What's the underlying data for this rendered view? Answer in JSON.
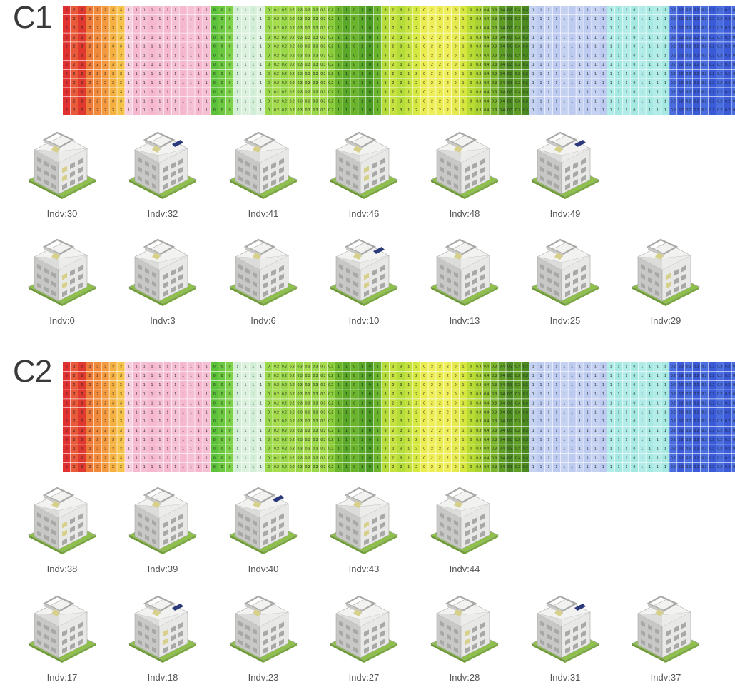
{
  "sections": [
    {
      "label": "C1",
      "rows": [
        {
          "items": [
            "Indv:30",
            "Indv:32",
            "Indv:41",
            "Indv:46",
            "Indv:48",
            "Indv:49"
          ]
        },
        {
          "items": [
            "Indv:0",
            "Indv:3",
            "Indv:6",
            "Indv:10",
            "Indv:13",
            "Indv:25",
            "Indv:29"
          ]
        }
      ]
    },
    {
      "label": "C2",
      "rows": [
        {
          "items": [
            "Indv:38",
            "Indv:39",
            "Indv:40",
            "Indv:43",
            "Indv:44"
          ]
        },
        {
          "items": [
            "Indv:17",
            "Indv:18",
            "Indv:23",
            "Indv:27",
            "Indv:28",
            "Indv:31",
            "Indv:37"
          ]
        }
      ]
    }
  ],
  "heatmap_columns": [
    {
      "color": "#e03030",
      "value": "0"
    },
    {
      "color": "#e85a3a",
      "value": "2"
    },
    {
      "color": "#e03a30",
      "value": "0"
    },
    {
      "color": "#ee7a3a",
      "value": "2"
    },
    {
      "color": "#f08a3a",
      "value": "2"
    },
    {
      "color": "#f39a40",
      "value": "2"
    },
    {
      "color": "#f5b040",
      "value": "3"
    },
    {
      "color": "#f6c24a",
      "value": "3"
    },
    {
      "color": "#f7cfe0",
      "value": "1"
    },
    {
      "color": "#f5b8cf",
      "value": "1"
    },
    {
      "color": "#f6c0d4",
      "value": "1"
    },
    {
      "color": "#f5b8cf",
      "value": "1"
    },
    {
      "color": "#f6c0d4",
      "value": "1"
    },
    {
      "color": "#f5b8cf",
      "value": "1"
    },
    {
      "color": "#f6c0d4",
      "value": "1"
    },
    {
      "color": "#f5b8cf",
      "value": "1"
    },
    {
      "color": "#f6c0d4",
      "value": "1"
    },
    {
      "color": "#f5b8cf",
      "value": "1"
    },
    {
      "color": "#f6c0d4",
      "value": "1"
    },
    {
      "color": "#5cc23a",
      "value": "0"
    },
    {
      "color": "#6cc840",
      "value": "0"
    },
    {
      "color": "#7ed24a",
      "value": "0"
    },
    {
      "color": "#d4efd8",
      "value": "1"
    },
    {
      "color": "#dcf2df",
      "value": "1"
    },
    {
      "color": "#d4efd8",
      "value": "1"
    },
    {
      "color": "#dcf2df",
      "value": "1"
    },
    {
      "color": "#9ad84a",
      "value": "0"
    },
    {
      "color": "#a6dc4e",
      "value": "0.2"
    },
    {
      "color": "#9ad84a",
      "value": "0.2"
    },
    {
      "color": "#a6dc4e",
      "value": "0.2"
    },
    {
      "color": "#9ad84a",
      "value": "0.3"
    },
    {
      "color": "#a6dc4e",
      "value": "0.3"
    },
    {
      "color": "#9ad84a",
      "value": "0.3"
    },
    {
      "color": "#a6dc4e",
      "value": "0.3"
    },
    {
      "color": "#8acc3a",
      "value": "0.2"
    },
    {
      "color": "#6ab52c",
      "value": "1"
    },
    {
      "color": "#5aa828",
      "value": "1"
    },
    {
      "color": "#6ab52c",
      "value": "0"
    },
    {
      "color": "#5aa828",
      "value": "1"
    },
    {
      "color": "#4a9a22",
      "value": "0"
    },
    {
      "color": "#6ab52c",
      "value": "1"
    },
    {
      "color": "#b6dc3a",
      "value": "3"
    },
    {
      "color": "#c6e240",
      "value": "2"
    },
    {
      "color": "#b6dc3a",
      "value": "3"
    },
    {
      "color": "#c6e240",
      "value": "1"
    },
    {
      "color": "#d6e842",
      "value": "2"
    },
    {
      "color": "#eaec50",
      "value": "0"
    },
    {
      "color": "#f0ee58",
      "value": "2"
    },
    {
      "color": "#eaec50",
      "value": "2"
    },
    {
      "color": "#f0ee58",
      "value": "2"
    },
    {
      "color": "#e6ea4e",
      "value": "0"
    },
    {
      "color": "#d8e640",
      "value": "1"
    },
    {
      "color": "#b8dc34",
      "value": "0"
    },
    {
      "color": "#aad232",
      "value": "0.3"
    },
    {
      "color": "#8ec22e",
      "value": "0.4"
    },
    {
      "color": "#7ab42a",
      "value": "0.3"
    },
    {
      "color": "#5e9e24",
      "value": "0.4"
    },
    {
      "color": "#4a8a20",
      "value": "0.3"
    },
    {
      "color": "#5e9e24",
      "value": "0.3"
    },
    {
      "color": "#4a8a20",
      "value": "0.3"
    },
    {
      "color": "#c6d2f2",
      "value": "1"
    },
    {
      "color": "#becbf0",
      "value": "1"
    },
    {
      "color": "#c6d2f2",
      "value": "1"
    },
    {
      "color": "#becbf0",
      "value": "1"
    },
    {
      "color": "#c6d2f2",
      "value": "1"
    },
    {
      "color": "#becbf0",
      "value": "1"
    },
    {
      "color": "#c6d2f2",
      "value": "1"
    },
    {
      "color": "#becbf0",
      "value": "1"
    },
    {
      "color": "#c6d2f2",
      "value": "1"
    },
    {
      "color": "#becbf0",
      "value": "1"
    },
    {
      "color": "#b2ece8",
      "value": "1"
    },
    {
      "color": "#a6e8e2",
      "value": "1"
    },
    {
      "color": "#b2ece8",
      "value": "1"
    },
    {
      "color": "#a6e8e2",
      "value": "0"
    },
    {
      "color": "#b2ece8",
      "value": "1"
    },
    {
      "color": "#a6e8e2",
      "value": "1"
    },
    {
      "color": "#b2ece8",
      "value": "1"
    },
    {
      "color": "#a6e8e2",
      "value": "1"
    },
    {
      "color": "#4a6ee0",
      "value": "0.2"
    },
    {
      "color": "#3a5ad8",
      "value": "0.2"
    },
    {
      "color": "#4a6ee0",
      "value": "0.2"
    },
    {
      "color": "#3a5ad8",
      "value": "0.2"
    },
    {
      "color": "#4a6ee0",
      "value": "0.3"
    },
    {
      "color": "#3a5ad8",
      "value": "0.2"
    },
    {
      "color": "#4a6ee0",
      "value": "0.2"
    },
    {
      "color": "#3a5ad8",
      "value": "0.2"
    },
    {
      "color": "#4a6ee0",
      "value": "0.3"
    }
  ],
  "colors": {
    "concrete": "#e8e8e6",
    "concrete_shade": "#c8c8c6",
    "concrete_dark": "#a8a8a6",
    "grass": "#8fc04a",
    "glass": "#d6d08a",
    "solar": "#2a3a7a"
  }
}
